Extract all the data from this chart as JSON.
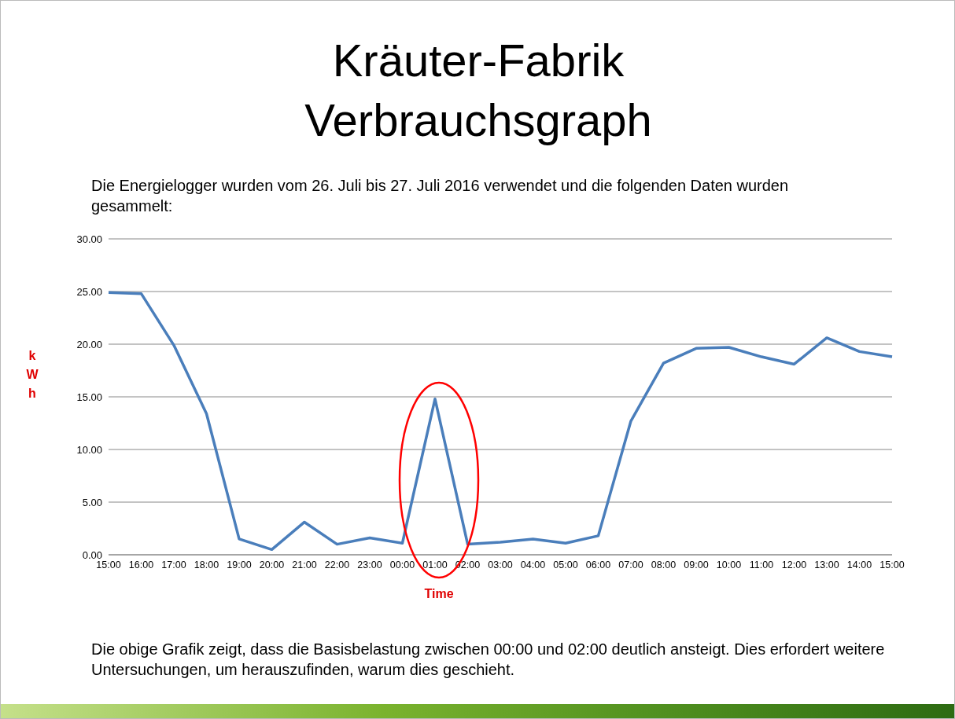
{
  "chart_data": {
    "type": "line",
    "title": "Kräuter-Fabrik\nVerbrauchsgraph",
    "subtitle": "Die Energielogger wurden vom 26. Juli bis 27. Juli 2016 verwendet und die folgenden Daten wurden gesammelt:",
    "xlabel": "Time",
    "ylabel": "kWh",
    "categories": [
      "15:00",
      "16:00",
      "17:00",
      "18:00",
      "19:00",
      "20:00",
      "21:00",
      "22:00",
      "23:00",
      "00:00",
      "01:00",
      "02:00",
      "03:00",
      "04:00",
      "05:00",
      "06:00",
      "07:00",
      "08:00",
      "09:00",
      "10:00",
      "11:00",
      "12:00",
      "13:00",
      "14:00",
      "15:00"
    ],
    "series": [
      {
        "color": "#4a7ebb",
        "values": [
          24.9,
          24.8,
          19.9,
          13.4,
          1.5,
          0.5,
          3.1,
          1.0,
          1.6,
          1.1,
          14.8,
          1.0,
          1.2,
          1.5,
          1.1,
          1.8,
          12.7,
          18.2,
          19.6,
          19.7,
          18.8,
          18.1,
          20.6,
          19.3,
          18.8
        ]
      }
    ],
    "ylim": [
      0,
      30
    ],
    "yticks": [
      {
        "value": 0,
        "label": "0.00"
      },
      {
        "value": 5,
        "label": "5.00"
      },
      {
        "value": 10,
        "label": "10.00"
      },
      {
        "value": 15,
        "label": "15.00"
      },
      {
        "value": 20,
        "label": "20.00"
      },
      {
        "value": 25,
        "label": "25.00"
      },
      {
        "value": 30,
        "label": "30.00"
      }
    ],
    "grid": "y",
    "legend": false,
    "marker": "none",
    "line_style": "solid",
    "annotations": [
      "Die obige Grafik zeigt, dass die Basisbelastung zwischen 00:00 und 02:00 deutlich ansteigt. Dies erfordert weitere Untersuchungen, um herauszufinden, warum dies geschieht."
    ]
  }
}
